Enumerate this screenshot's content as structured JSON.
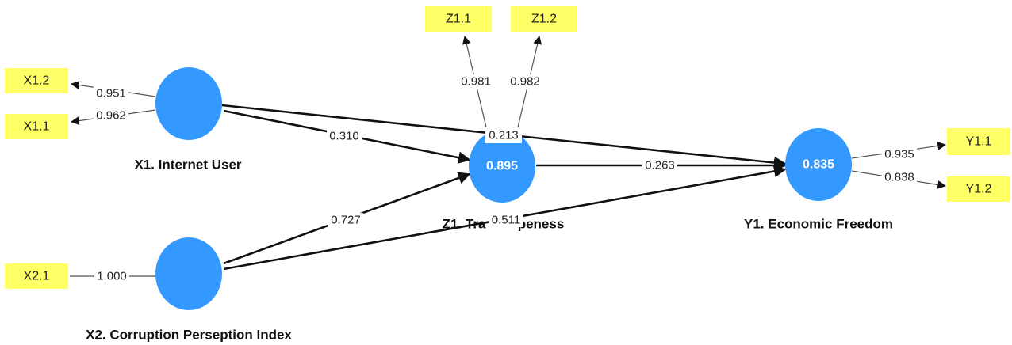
{
  "constructs": {
    "x1": {
      "label": "X1. Internet User",
      "value": ""
    },
    "x2": {
      "label": "X2. Corruption Perseption Index",
      "value": ""
    },
    "z1": {
      "label": "Z1. Transparency/Openness",
      "label_visible": "Z1. Tra",
      "label_visible_tail": "peness",
      "value": "0.895"
    },
    "y1": {
      "label": "Y1. Economic Freedom",
      "value": "0.835"
    }
  },
  "indicators": {
    "x1_2": "X1.2",
    "x1_1": "X1.1",
    "x2_1": "X2.1",
    "z1_1": "Z1.1",
    "z1_2": "Z1.2",
    "y1_1": "Y1.1",
    "y1_2": "Y1.2"
  },
  "loadings": {
    "x1_2": "0.951",
    "x1_1": "0.962",
    "x2_1": "1.000",
    "z1_1": "0.981",
    "z1_2": "0.982",
    "y1_1": "0.935",
    "y1_2": "0.838"
  },
  "paths": {
    "x1_z1": "0.310",
    "x1_y1": "0.213",
    "x2_z1": "0.727",
    "x2_y1": "0.511",
    "z1_y1": "0.263"
  },
  "colors": {
    "construct": "#3399ff",
    "indicator": "#ffff66"
  }
}
